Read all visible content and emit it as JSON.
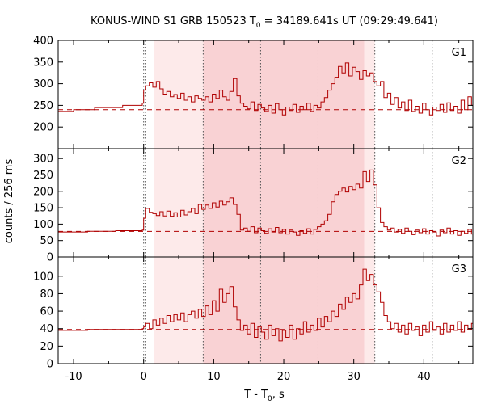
{
  "chart_data": {
    "type": "line",
    "title_parts": [
      "KONUS-WIND S1 GRB 150523 T",
      "0",
      " = 34189.641s UT (09:29:49.641)"
    ],
    "xlabel_parts": [
      "T - T",
      "0",
      ", s"
    ],
    "ylabel": "counts / 256 ms",
    "xlim": [
      -12.2,
      47.0
    ],
    "x_ticks": [
      -10,
      0,
      10,
      20,
      30,
      40
    ],
    "x_tick_labels": [
      "-10",
      "0",
      "10",
      "20",
      "30",
      "40"
    ],
    "style": {
      "curve_color": "#b00000",
      "background_line_color": "#b00000",
      "vline_color": "#555555",
      "band_light": "#fdeaea",
      "band_dark": "#f9d2d4"
    },
    "bands": [
      {
        "x0": 1.5,
        "x1": 8.5,
        "shade": "light"
      },
      {
        "x0": 8.5,
        "x1": 31.5,
        "shade": "dark"
      },
      {
        "x0": 31.5,
        "x1": 33.0,
        "shade": "light"
      }
    ],
    "vertical_lines": [
      0.0,
      0.3,
      8.5,
      16.7,
      24.9,
      33.0,
      41.2
    ],
    "panels": [
      {
        "label": "G1",
        "ylim": [
          150,
          400
        ],
        "y_ticks": [
          200,
          250,
          300,
          350,
          400
        ],
        "y_tick_labels": [
          "200",
          "250",
          "300",
          "350",
          "400"
        ],
        "background": 240,
        "curve": [
          [
            -12.2,
            236
          ],
          [
            -10.0,
            240
          ],
          [
            -7.0,
            245
          ],
          [
            -3.0,
            250
          ],
          [
            -0.2,
            255
          ],
          [
            0.0,
            285
          ],
          [
            0.3,
            295
          ],
          [
            0.8,
            302
          ],
          [
            1.3,
            292
          ],
          [
            1.8,
            305
          ],
          [
            2.3,
            288
          ],
          [
            2.8,
            276
          ],
          [
            3.3,
            282
          ],
          [
            3.8,
            270
          ],
          [
            4.3,
            275
          ],
          [
            4.8,
            266
          ],
          [
            5.3,
            278
          ],
          [
            5.8,
            262
          ],
          [
            6.3,
            270
          ],
          [
            6.8,
            258
          ],
          [
            7.3,
            272
          ],
          [
            7.8,
            266
          ],
          [
            8.3,
            262
          ],
          [
            8.8,
            270
          ],
          [
            9.3,
            258
          ],
          [
            9.8,
            276
          ],
          [
            10.3,
            266
          ],
          [
            10.8,
            285
          ],
          [
            11.3,
            270
          ],
          [
            11.8,
            262
          ],
          [
            12.3,
            282
          ],
          [
            12.8,
            312
          ],
          [
            13.3,
            272
          ],
          [
            13.8,
            255
          ],
          [
            14.3,
            248
          ],
          [
            14.8,
            242
          ],
          [
            15.3,
            258
          ],
          [
            15.8,
            238
          ],
          [
            16.3,
            252
          ],
          [
            16.8,
            244
          ],
          [
            17.3,
            236
          ],
          [
            17.8,
            250
          ],
          [
            18.3,
            232
          ],
          [
            18.8,
            254
          ],
          [
            19.3,
            240
          ],
          [
            19.8,
            228
          ],
          [
            20.3,
            246
          ],
          [
            20.8,
            238
          ],
          [
            21.3,
            252
          ],
          [
            21.8,
            234
          ],
          [
            22.3,
            248
          ],
          [
            22.8,
            240
          ],
          [
            23.3,
            255
          ],
          [
            23.8,
            236
          ],
          [
            24.3,
            250
          ],
          [
            24.8,
            244
          ],
          [
            25.3,
            258
          ],
          [
            25.8,
            268
          ],
          [
            26.3,
            285
          ],
          [
            26.8,
            300
          ],
          [
            27.3,
            315
          ],
          [
            27.8,
            340
          ],
          [
            28.3,
            325
          ],
          [
            28.8,
            348
          ],
          [
            29.3,
            318
          ],
          [
            29.8,
            338
          ],
          [
            30.3,
            328
          ],
          [
            30.8,
            310
          ],
          [
            31.3,
            330
          ],
          [
            31.8,
            318
          ],
          [
            32.3,
            325
          ],
          [
            32.8,
            305
          ],
          [
            33.3,
            295
          ],
          [
            33.8,
            305
          ],
          [
            34.3,
            268
          ],
          [
            34.8,
            278
          ],
          [
            35.3,
            252
          ],
          [
            35.8,
            268
          ],
          [
            36.3,
            244
          ],
          [
            36.8,
            258
          ],
          [
            37.3,
            238
          ],
          [
            37.8,
            262
          ],
          [
            38.3,
            236
          ],
          [
            38.8,
            248
          ],
          [
            39.3,
            232
          ],
          [
            39.8,
            255
          ],
          [
            40.3,
            240
          ],
          [
            40.8,
            228
          ],
          [
            41.3,
            246
          ],
          [
            41.8,
            238
          ],
          [
            42.3,
            252
          ],
          [
            42.8,
            234
          ],
          [
            43.3,
            256
          ],
          [
            43.8,
            238
          ],
          [
            44.3,
            248
          ],
          [
            44.8,
            232
          ],
          [
            45.3,
            262
          ],
          [
            45.8,
            240
          ],
          [
            46.3,
            270
          ],
          [
            46.8,
            250
          ]
        ]
      },
      {
        "label": "G2",
        "ylim": [
          0,
          330
        ],
        "y_ticks": [
          0,
          50,
          100,
          150,
          200,
          250,
          300
        ],
        "y_tick_labels": [
          "0",
          "50",
          "100",
          "150",
          "200",
          "250",
          "300"
        ],
        "background": 78,
        "curve": [
          [
            -12.2,
            76
          ],
          [
            -8.0,
            78
          ],
          [
            -4.0,
            80
          ],
          [
            -0.2,
            82
          ],
          [
            0.0,
            118
          ],
          [
            0.3,
            148
          ],
          [
            0.8,
            136
          ],
          [
            1.3,
            132
          ],
          [
            1.8,
            126
          ],
          [
            2.3,
            138
          ],
          [
            2.8,
            125
          ],
          [
            3.3,
            140
          ],
          [
            3.8,
            124
          ],
          [
            4.3,
            135
          ],
          [
            4.8,
            122
          ],
          [
            5.3,
            142
          ],
          [
            5.8,
            128
          ],
          [
            6.3,
            138
          ],
          [
            6.8,
            148
          ],
          [
            7.3,
            132
          ],
          [
            7.8,
            160
          ],
          [
            8.3,
            145
          ],
          [
            8.8,
            158
          ],
          [
            9.3,
            148
          ],
          [
            9.8,
            165
          ],
          [
            10.3,
            152
          ],
          [
            10.8,
            170
          ],
          [
            11.3,
            158
          ],
          [
            11.8,
            168
          ],
          [
            12.3,
            180
          ],
          [
            12.8,
            160
          ],
          [
            13.3,
            130
          ],
          [
            13.8,
            82
          ],
          [
            14.3,
            88
          ],
          [
            14.8,
            78
          ],
          [
            15.3,
            92
          ],
          [
            15.8,
            74
          ],
          [
            16.3,
            88
          ],
          [
            16.8,
            80
          ],
          [
            17.3,
            72
          ],
          [
            17.8,
            86
          ],
          [
            18.3,
            76
          ],
          [
            18.8,
            90
          ],
          [
            19.3,
            74
          ],
          [
            19.8,
            84
          ],
          [
            20.3,
            70
          ],
          [
            20.8,
            82
          ],
          [
            21.3,
            76
          ],
          [
            21.8,
            66
          ],
          [
            22.3,
            80
          ],
          [
            22.8,
            72
          ],
          [
            23.3,
            86
          ],
          [
            23.8,
            70
          ],
          [
            24.3,
            84
          ],
          [
            24.8,
            92
          ],
          [
            25.3,
            100
          ],
          [
            25.8,
            110
          ],
          [
            26.3,
            130
          ],
          [
            26.8,
            168
          ],
          [
            27.3,
            190
          ],
          [
            27.8,
            200
          ],
          [
            28.3,
            210
          ],
          [
            28.8,
            198
          ],
          [
            29.3,
            215
          ],
          [
            29.8,
            205
          ],
          [
            30.3,
            222
          ],
          [
            30.8,
            210
          ],
          [
            31.3,
            260
          ],
          [
            31.8,
            230
          ],
          [
            32.3,
            265
          ],
          [
            32.8,
            220
          ],
          [
            33.3,
            150
          ],
          [
            33.8,
            105
          ],
          [
            34.3,
            92
          ],
          [
            34.8,
            82
          ],
          [
            35.3,
            88
          ],
          [
            35.8,
            76
          ],
          [
            36.3,
            84
          ],
          [
            36.8,
            72
          ],
          [
            37.3,
            88
          ],
          [
            37.8,
            78
          ],
          [
            38.3,
            68
          ],
          [
            38.8,
            82
          ],
          [
            39.3,
            74
          ],
          [
            39.8,
            86
          ],
          [
            40.3,
            70
          ],
          [
            40.8,
            80
          ],
          [
            41.3,
            76
          ],
          [
            41.8,
            64
          ],
          [
            42.3,
            82
          ],
          [
            42.8,
            74
          ],
          [
            43.3,
            88
          ],
          [
            43.8,
            70
          ],
          [
            44.3,
            80
          ],
          [
            44.8,
            66
          ],
          [
            45.3,
            78
          ],
          [
            45.8,
            72
          ],
          [
            46.3,
            84
          ],
          [
            46.8,
            70
          ]
        ]
      },
      {
        "label": "G3",
        "ylim": [
          0,
          122
        ],
        "y_ticks": [
          0,
          20,
          40,
          60,
          80,
          100
        ],
        "y_tick_labels": [
          "0",
          "20",
          "40",
          "60",
          "80",
          "100"
        ],
        "background": 39,
        "curve": [
          [
            -12.2,
            38
          ],
          [
            -8.0,
            39
          ],
          [
            -4.0,
            39
          ],
          [
            -0.2,
            40
          ],
          [
            0.0,
            42
          ],
          [
            0.3,
            46
          ],
          [
            0.8,
            40
          ],
          [
            1.3,
            50
          ],
          [
            1.8,
            44
          ],
          [
            2.3,
            52
          ],
          [
            2.8,
            46
          ],
          [
            3.3,
            55
          ],
          [
            3.8,
            48
          ],
          [
            4.3,
            56
          ],
          [
            4.8,
            50
          ],
          [
            5.3,
            58
          ],
          [
            5.8,
            48
          ],
          [
            6.3,
            56
          ],
          [
            6.8,
            60
          ],
          [
            7.3,
            52
          ],
          [
            7.8,
            62
          ],
          [
            8.3,
            54
          ],
          [
            8.8,
            66
          ],
          [
            9.3,
            56
          ],
          [
            9.8,
            72
          ],
          [
            10.3,
            60
          ],
          [
            10.8,
            85
          ],
          [
            11.3,
            70
          ],
          [
            11.8,
            80
          ],
          [
            12.3,
            88
          ],
          [
            12.8,
            65
          ],
          [
            13.3,
            50
          ],
          [
            13.8,
            38
          ],
          [
            14.3,
            44
          ],
          [
            14.8,
            34
          ],
          [
            15.3,
            46
          ],
          [
            15.8,
            30
          ],
          [
            16.3,
            42
          ],
          [
            16.8,
            36
          ],
          [
            17.3,
            28
          ],
          [
            17.8,
            44
          ],
          [
            18.3,
            32
          ],
          [
            18.8,
            40
          ],
          [
            19.3,
            26
          ],
          [
            19.8,
            38
          ],
          [
            20.3,
            30
          ],
          [
            20.8,
            44
          ],
          [
            21.3,
            28
          ],
          [
            21.8,
            40
          ],
          [
            22.3,
            34
          ],
          [
            22.8,
            48
          ],
          [
            23.3,
            36
          ],
          [
            23.8,
            44
          ],
          [
            24.3,
            38
          ],
          [
            24.8,
            52
          ],
          [
            25.3,
            42
          ],
          [
            25.8,
            54
          ],
          [
            26.3,
            48
          ],
          [
            26.8,
            60
          ],
          [
            27.3,
            54
          ],
          [
            27.8,
            68
          ],
          [
            28.3,
            62
          ],
          [
            28.8,
            76
          ],
          [
            29.3,
            70
          ],
          [
            29.8,
            80
          ],
          [
            30.3,
            74
          ],
          [
            30.8,
            90
          ],
          [
            31.3,
            108
          ],
          [
            31.8,
            95
          ],
          [
            32.3,
            102
          ],
          [
            32.8,
            90
          ],
          [
            33.3,
            82
          ],
          [
            33.8,
            70
          ],
          [
            34.3,
            55
          ],
          [
            34.8,
            48
          ],
          [
            35.3,
            40
          ],
          [
            35.8,
            46
          ],
          [
            36.3,
            36
          ],
          [
            36.8,
            44
          ],
          [
            37.3,
            34
          ],
          [
            37.8,
            46
          ],
          [
            38.3,
            38
          ],
          [
            38.8,
            42
          ],
          [
            39.3,
            32
          ],
          [
            39.8,
            44
          ],
          [
            40.3,
            36
          ],
          [
            40.8,
            48
          ],
          [
            41.3,
            38
          ],
          [
            41.8,
            42
          ],
          [
            42.3,
            34
          ],
          [
            42.8,
            46
          ],
          [
            43.3,
            36
          ],
          [
            43.8,
            44
          ],
          [
            44.3,
            38
          ],
          [
            44.8,
            48
          ],
          [
            45.3,
            36
          ],
          [
            45.8,
            44
          ],
          [
            46.3,
            40
          ],
          [
            46.8,
            46
          ]
        ]
      }
    ]
  }
}
